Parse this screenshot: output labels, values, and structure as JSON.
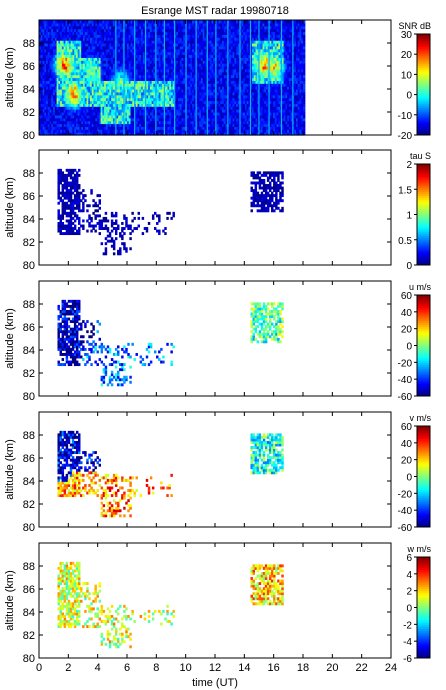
{
  "figure": {
    "title": "Esrange MST radar 19980718",
    "xlabel": "time (UT)"
  },
  "chart_data": [
    {
      "type": "heatmap",
      "id": "snr",
      "ylabel": "altitude (km)",
      "ylim": [
        80,
        90
      ],
      "yticks": [
        80,
        82,
        84,
        86,
        88
      ],
      "xlim": [
        0,
        24
      ],
      "xticks": [
        0,
        2,
        4,
        6,
        8,
        10,
        12,
        14,
        16,
        18,
        20,
        22,
        24
      ],
      "data_extent_hours": [
        0,
        18
      ],
      "colorbar": {
        "label": "SNR dB",
        "min": -20,
        "max": 30,
        "ticks": [
          -20,
          -10,
          0,
          10,
          20,
          30
        ]
      },
      "features": [
        {
          "t_center": 1.7,
          "alt_center": 86.0,
          "peak_value": 28
        },
        {
          "t_center": 2.3,
          "alt_center": 83.5,
          "peak_value": 25
        },
        {
          "t_center": 3.5,
          "alt_center": 85.5,
          "peak_value": 10
        },
        {
          "t_center": 5.5,
          "alt_center": 84.5,
          "peak_value": 8
        },
        {
          "t_center": 15.3,
          "alt_center": 86.0,
          "peak_value": 25
        },
        {
          "t_center": 16.0,
          "alt_center": 85.8,
          "peak_value": 20
        }
      ]
    },
    {
      "type": "heatmap",
      "id": "tau",
      "ylabel": "altitude (km)",
      "ylim": [
        80,
        90
      ],
      "yticks": [
        80,
        82,
        84,
        86,
        88
      ],
      "xlim": [
        0,
        24
      ],
      "xticks": [
        0,
        2,
        4,
        6,
        8,
        10,
        12,
        14,
        16,
        18,
        20,
        22,
        24
      ],
      "colorbar": {
        "label": "tau S",
        "min": 0,
        "max": 2,
        "ticks": [
          0,
          0.5,
          1,
          1.5,
          2
        ]
      },
      "typical_value": 0.1,
      "features": [
        {
          "t_center": 1.8,
          "alt_center": 85.0,
          "value": 0.1
        },
        {
          "t_center": 5.0,
          "alt_center": 82.0,
          "value": 0.1
        },
        {
          "t_center": 15.3,
          "alt_center": 85.8,
          "value": 0.1
        }
      ]
    },
    {
      "type": "heatmap",
      "id": "u",
      "ylabel": "altitude (km)",
      "ylim": [
        80,
        90
      ],
      "yticks": [
        80,
        82,
        84,
        86,
        88
      ],
      "xlim": [
        0,
        24
      ],
      "xticks": [
        0,
        2,
        4,
        6,
        8,
        10,
        12,
        14,
        16,
        18,
        20,
        22,
        24
      ],
      "colorbar": {
        "label": "u m/s",
        "min": -60,
        "max": 60,
        "ticks": [
          -60,
          -40,
          -20,
          0,
          20,
          40,
          60
        ]
      },
      "features": [
        {
          "t_center": 1.8,
          "alt_center": 85.0,
          "value": -55
        },
        {
          "t_center": 4.5,
          "alt_center": 82.5,
          "value": -30
        },
        {
          "t_center": 15.3,
          "alt_center": 85.8,
          "value": -5
        }
      ]
    },
    {
      "type": "heatmap",
      "id": "v",
      "ylabel": "altitude (km)",
      "ylim": [
        80,
        90
      ],
      "yticks": [
        80,
        82,
        84,
        86,
        88
      ],
      "xlim": [
        0,
        24
      ],
      "xticks": [
        0,
        2,
        4,
        6,
        8,
        10,
        12,
        14,
        16,
        18,
        20,
        22,
        24
      ],
      "colorbar": {
        "label": "v m/s",
        "min": -60,
        "max": 60,
        "ticks": [
          -60,
          -40,
          -20,
          0,
          20,
          40,
          60
        ]
      },
      "features": [
        {
          "t_center": 1.8,
          "alt_center": 85.0,
          "value": -50
        },
        {
          "t_center": 2.3,
          "alt_center": 83.5,
          "value": 25
        },
        {
          "t_center": 6.5,
          "alt_center": 83.0,
          "value": 30
        },
        {
          "t_center": 15.3,
          "alt_center": 85.8,
          "value": -10
        }
      ]
    },
    {
      "type": "heatmap",
      "id": "w",
      "ylabel": "altitude (km)",
      "ylim": [
        80,
        90
      ],
      "yticks": [
        80,
        82,
        84,
        86,
        88
      ],
      "xlim": [
        0,
        24
      ],
      "xticks": [
        0,
        2,
        4,
        6,
        8,
        10,
        12,
        14,
        16,
        18,
        20,
        22,
        24
      ],
      "colorbar": {
        "label": "w m/s",
        "min": -6,
        "max": 6,
        "ticks": [
          -6,
          -4,
          -2,
          0,
          2,
          4,
          6
        ]
      },
      "features": [
        {
          "t_center": 1.8,
          "alt_center": 85.0,
          "value": 1
        },
        {
          "t_center": 5.0,
          "alt_center": 82.0,
          "value": 1
        },
        {
          "t_center": 15.3,
          "alt_center": 85.8,
          "value": 2
        }
      ]
    }
  ]
}
